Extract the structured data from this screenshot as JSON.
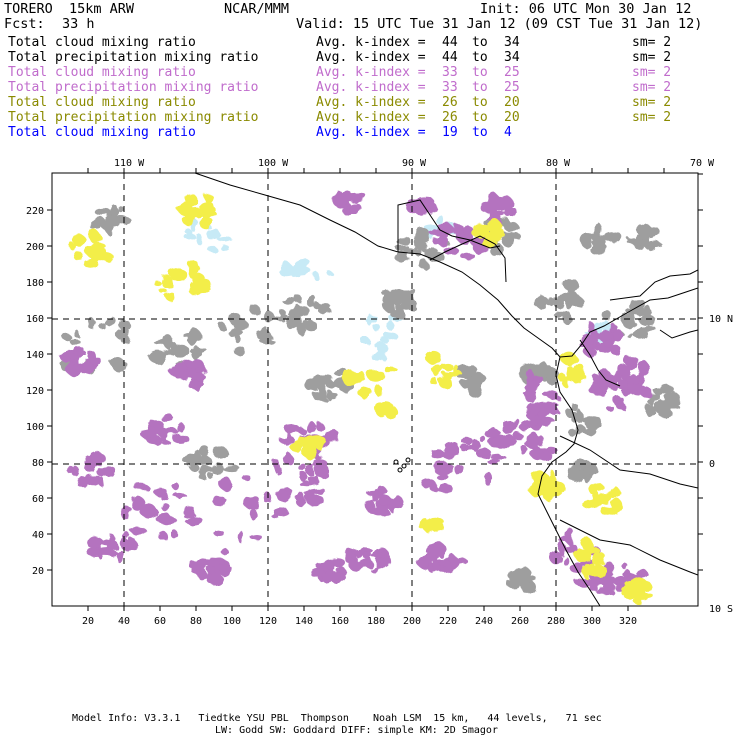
{
  "header": {
    "model": "TORERO  15km ARW",
    "center": "NCAR/MMM",
    "init": "Init: 06 UTC Mon 30 Jan 12",
    "fcst_label": "Fcst:",
    "fcst_value": "33 h",
    "valid": "Valid: 15 UTC Tue 31 Jan 12 (09 CST Tue 31 Jan 12)"
  },
  "legend": [
    {
      "field": "Total cloud mixing ratio",
      "kidx": "Avg. k-index =",
      "from": "44",
      "to_word": "to",
      "to": "34",
      "sm": "sm= 2",
      "color": "#000000"
    },
    {
      "field": "Total precipitation mixing ratio",
      "kidx": "Avg. k-index =",
      "from": "44",
      "to_word": "to",
      "to": "34",
      "sm": "sm= 2",
      "color": "#000000"
    },
    {
      "field": "Total cloud mixing ratio",
      "kidx": "Avg. k-index =",
      "from": "33",
      "to_word": "to",
      "to": "25",
      "sm": "sm= 2",
      "color": "#c06ccc"
    },
    {
      "field": "Total precipitation mixing ratio",
      "kidx": "Avg. k-index =",
      "from": "33",
      "to_word": "to",
      "to": "25",
      "sm": "sm= 2",
      "color": "#c06ccc"
    },
    {
      "field": "Total cloud mixing ratio",
      "kidx": "Avg. k-index =",
      "from": "26",
      "to_word": "to",
      "to": "20",
      "sm": "sm= 2",
      "color": "#8a8a00"
    },
    {
      "field": "Total precipitation mixing ratio",
      "kidx": "Avg. k-index =",
      "from": "26",
      "to_word": "to",
      "to": "20",
      "sm": "sm= 2",
      "color": "#8a8a00"
    },
    {
      "field": "Total cloud mixing ratio",
      "kidx": "Avg. k-index =",
      "from": "19",
      "to_word": "to",
      "to": "4",
      "sm": "",
      "color": "#0000ff"
    }
  ],
  "map": {
    "lon_labels": [
      "110 W",
      "100 W",
      "90 W",
      "80 W",
      "70 W"
    ],
    "lat_labels": [
      "10 N",
      "0",
      "10 S"
    ],
    "x_ticks": [
      "20",
      "40",
      "60",
      "80",
      "100",
      "120",
      "140",
      "160",
      "180",
      "200",
      "220",
      "240",
      "260",
      "280",
      "300",
      "320"
    ],
    "y_ticks": [
      "20",
      "40",
      "60",
      "80",
      "100",
      "120",
      "140",
      "160",
      "180",
      "200",
      "220"
    ],
    "colors": {
      "gray": "#9e9e9e",
      "purple": "#b473bf",
      "yellow": "#f3ee4a",
      "cyan": "#c7eaf6",
      "coast": "#000000"
    }
  },
  "footer": {
    "line1": "Model Info: V3.3.1   Tiedtke YSU PBL  Thompson    Noah LSM  15 km,   44 levels,   71 sec",
    "line2": "LW: Godd SW: Goddard DIFF: simple KM: 2D Smagor"
  }
}
